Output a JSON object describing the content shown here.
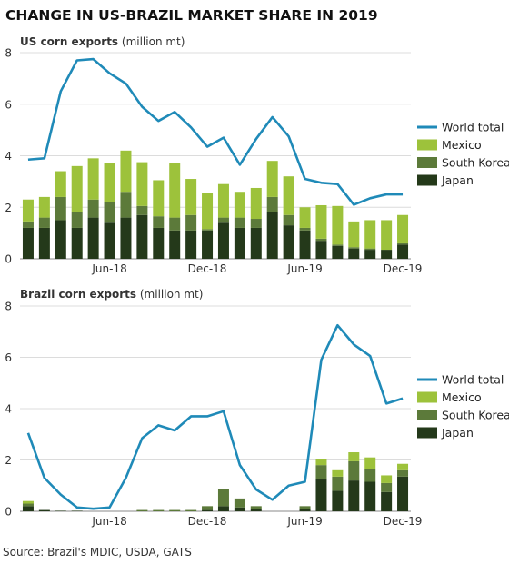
{
  "title": "CHANGE IN US-BRAZIL MARKET SHARE IN 2019",
  "source": "Source: Brazil's MDIC, USDA, GATS",
  "colors": {
    "world_total": "#1f8ab8",
    "mexico": "#9dc23b",
    "south_korea": "#5c7a3a",
    "japan": "#24391a"
  },
  "chart_data": [
    {
      "type": "bar",
      "subtitle_bold": "US corn exports",
      "subtitle_normal": " (million mt)",
      "ylim": [
        0,
        8
      ],
      "yticks": [
        "0",
        "2",
        "4",
        "6",
        "8"
      ],
      "xtick_labels": [
        "Jun-18",
        "Dec-18",
        "Jun-19",
        "Dec-19"
      ],
      "legend": [
        "World total",
        "Mexico",
        "South Korea",
        "Japan"
      ],
      "series": [
        {
          "name": "Japan",
          "stack": true,
          "values": [
            1.2,
            1.2,
            1.5,
            1.2,
            1.6,
            1.4,
            1.6,
            1.7,
            1.2,
            1.1,
            1.1,
            1.1,
            1.4,
            1.2,
            1.2,
            1.8,
            1.3,
            1.1,
            0.7,
            0.5,
            0.4,
            0.35,
            0.35,
            0.55
          ]
        },
        {
          "name": "South Korea",
          "stack": true,
          "values": [
            0.25,
            0.4,
            0.9,
            0.6,
            0.7,
            0.8,
            1.0,
            0.35,
            0.45,
            0.5,
            0.6,
            0.05,
            0.2,
            0.4,
            0.35,
            0.6,
            0.4,
            0.1,
            0.08,
            0.05,
            0.05,
            0.05,
            0.0,
            0.05
          ]
        },
        {
          "name": "Mexico",
          "stack": true,
          "values": [
            0.85,
            0.8,
            1.0,
            1.8,
            1.6,
            1.5,
            1.6,
            1.7,
            1.4,
            2.1,
            1.4,
            1.4,
            1.3,
            1.0,
            1.2,
            1.4,
            1.5,
            0.8,
            1.3,
            1.5,
            1.0,
            1.1,
            1.15,
            1.1
          ]
        },
        {
          "name": "World total",
          "type": "line",
          "values": [
            3.85,
            3.9,
            6.5,
            7.7,
            7.75,
            7.2,
            6.8,
            5.9,
            5.35,
            5.7,
            5.1,
            4.35,
            4.7,
            3.65,
            4.65,
            5.5,
            4.75,
            3.1,
            2.95,
            2.9,
            2.1,
            2.35,
            2.5,
            2.5
          ]
        }
      ]
    },
    {
      "type": "bar",
      "subtitle_bold": "Brazil corn exports",
      "subtitle_normal": " (million mt)",
      "ylim": [
        0,
        8
      ],
      "yticks": [
        "0",
        "2",
        "4",
        "6",
        "8"
      ],
      "xtick_labels": [
        "Jun-18",
        "Dec-18",
        "Jun-19",
        "Dec-19"
      ],
      "legend": [
        "World total",
        "Mexico",
        "South Korea",
        "Japan"
      ],
      "series": [
        {
          "name": "Japan",
          "stack": true,
          "values": [
            0.2,
            0.05,
            0.02,
            0.02,
            0.0,
            0.0,
            0.0,
            0.0,
            0.0,
            0.0,
            0.0,
            0.05,
            0.2,
            0.15,
            0.1,
            0.0,
            0.0,
            0.1,
            1.25,
            0.8,
            1.2,
            1.15,
            0.75,
            1.35
          ]
        },
        {
          "name": "South Korea",
          "stack": true,
          "values": [
            0.1,
            0.0,
            0.0,
            0.0,
            0.0,
            0.0,
            0.0,
            0.05,
            0.05,
            0.05,
            0.05,
            0.15,
            0.65,
            0.35,
            0.1,
            0.0,
            0.0,
            0.1,
            0.55,
            0.55,
            0.75,
            0.5,
            0.35,
            0.25
          ]
        },
        {
          "name": "Mexico",
          "stack": true,
          "values": [
            0.1,
            0.0,
            0.0,
            0.0,
            0.0,
            0.0,
            0.0,
            0.0,
            0.0,
            0.0,
            0.0,
            0.0,
            0.0,
            0.0,
            0.0,
            0.0,
            0.0,
            0.0,
            0.25,
            0.25,
            0.35,
            0.45,
            0.3,
            0.25
          ]
        },
        {
          "name": "World total",
          "type": "line",
          "values": [
            3.05,
            1.3,
            0.65,
            0.15,
            0.1,
            0.15,
            1.3,
            2.85,
            3.35,
            3.15,
            3.7,
            3.7,
            3.9,
            1.8,
            0.85,
            0.45,
            1.0,
            1.15,
            5.9,
            7.25,
            6.5,
            6.05,
            4.2,
            4.4
          ]
        }
      ]
    }
  ]
}
